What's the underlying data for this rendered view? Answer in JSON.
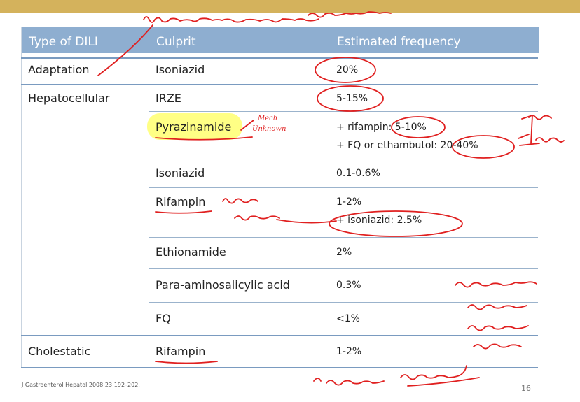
{
  "header": {
    "col_type": "Type of DILI",
    "col_culprit": "Culprit",
    "col_freq": "Estimated frequency"
  },
  "rows": [
    {
      "type": "Adaptation",
      "culprit": "Isoniazid",
      "freq": "20%"
    },
    {
      "type": "Hepatocellular",
      "culprit": "IRZE",
      "freq": "5-15%"
    },
    {
      "type": "",
      "culprit": "Pyrazinamide",
      "freq": "+ rifampin: 5-10%",
      "freq2": "+ FQ or ethambutol: 20-40%"
    },
    {
      "type": "",
      "culprit": "Isoniazid",
      "freq": "0.1-0.6%"
    },
    {
      "type": "",
      "culprit": "Rifampin",
      "freq": "1-2%",
      "freq2": "+ isoniazid: 2.5%"
    },
    {
      "type": "",
      "culprit": "Ethionamide",
      "freq": "2%"
    },
    {
      "type": "",
      "culprit": "Para-aminosalicylic acid",
      "freq": "0.3%"
    },
    {
      "type": "",
      "culprit": "FQ",
      "freq": "<1%"
    },
    {
      "type": "Cholestatic",
      "culprit": "Rifampin",
      "freq": "1-2%"
    }
  ],
  "footer": {
    "citation": "J Gastroenterol Hepatol 2008;23:192–202.",
    "page_number": "16"
  },
  "annotations": {
    "ink_color": "#e02020",
    "highlight_color": "#ffff66",
    "mech_note_1": "Mech",
    "mech_note_2": "Unknown"
  }
}
